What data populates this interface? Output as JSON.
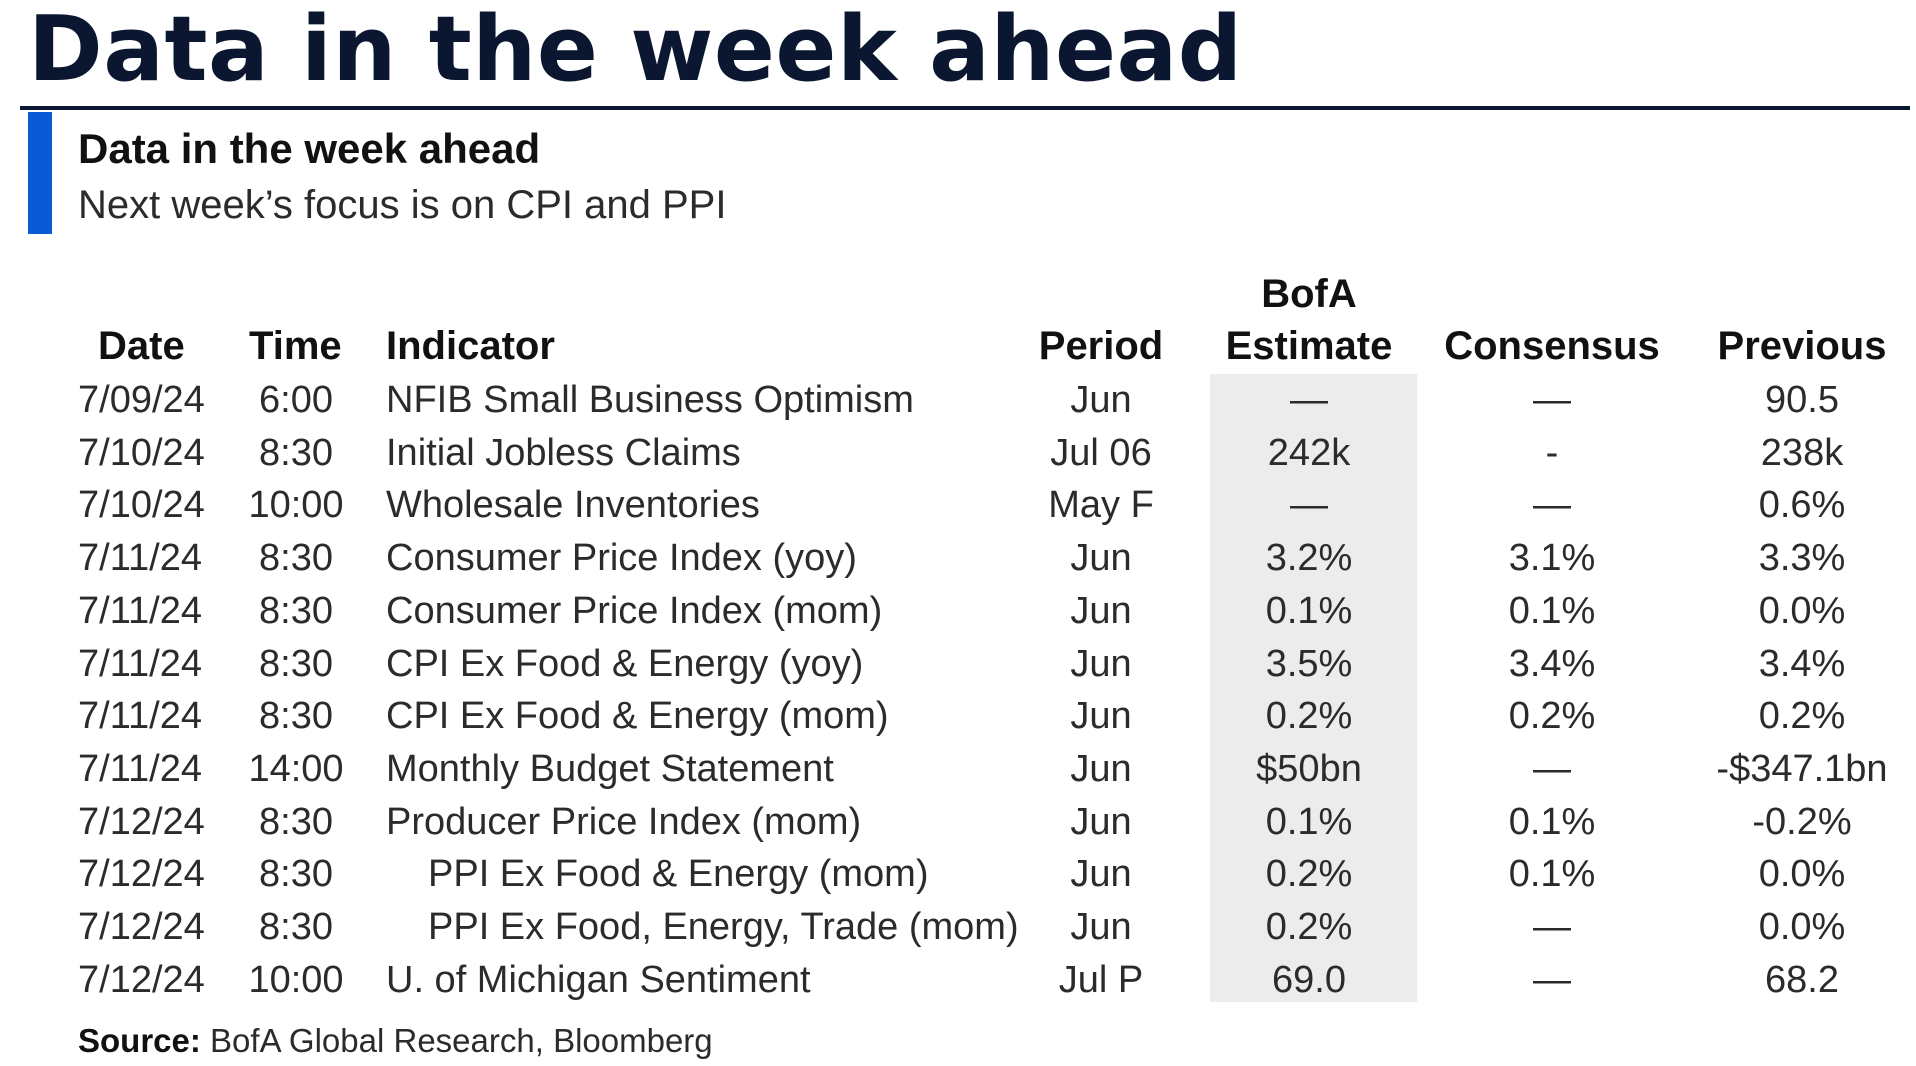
{
  "page_title": "Data in the week ahead",
  "exhibit": {
    "title": "Data in the week ahead",
    "subtitle": "Next week’s focus is on CPI and PPI"
  },
  "table": {
    "headers": {
      "date": "Date",
      "time": "Time",
      "indicator": "Indicator",
      "period": "Period",
      "estimate_line1": "BofA",
      "estimate_line2": "Estimate",
      "consensus": "Consensus",
      "previous": "Previous"
    },
    "rows": [
      {
        "date": "7/09/24",
        "time": "6:00",
        "indicator": "NFIB Small Business Optimism",
        "period": "Jun",
        "estimate": "—",
        "consensus": "—",
        "previous": "90.5"
      },
      {
        "date": "7/10/24",
        "time": "8:30",
        "indicator": "Initial Jobless Claims",
        "period": "Jul 06",
        "estimate": "242k",
        "consensus": "-",
        "previous": "238k"
      },
      {
        "date": "7/10/24",
        "time": "10:00",
        "indicator": "Wholesale Inventories",
        "period": "May F",
        "estimate": "—",
        "consensus": "—",
        "previous": "0.6%"
      },
      {
        "date": "7/11/24",
        "time": "8:30",
        "indicator": "Consumer Price Index (yoy)",
        "period": "Jun",
        "estimate": "3.2%",
        "consensus": "3.1%",
        "previous": "3.3%"
      },
      {
        "date": "7/11/24",
        "time": "8:30",
        "indicator": "Consumer Price Index (mom)",
        "period": "Jun",
        "estimate": "0.1%",
        "consensus": "0.1%",
        "previous": "0.0%"
      },
      {
        "date": "7/11/24",
        "time": "8:30",
        "indicator": "CPI Ex Food & Energy (yoy)",
        "period": "Jun",
        "estimate": "3.5%",
        "consensus": "3.4%",
        "previous": "3.4%"
      },
      {
        "date": "7/11/24",
        "time": "8:30",
        "indicator": "CPI Ex Food & Energy (mom)",
        "period": "Jun",
        "estimate": "0.2%",
        "consensus": "0.2%",
        "previous": "0.2%"
      },
      {
        "date": "7/11/24",
        "time": "14:00",
        "indicator": "Monthly Budget Statement",
        "period": "Jun",
        "estimate": "$50bn",
        "consensus": "—",
        "previous": "-$347.1bn"
      },
      {
        "date": "7/12/24",
        "time": "8:30",
        "indicator": "Producer Price Index (mom)",
        "period": "Jun",
        "estimate": "0.1%",
        "consensus": "0.1%",
        "previous": "-0.2%"
      },
      {
        "date": "7/12/24",
        "time": "8:30",
        "indicator": "PPI Ex Food & Energy (mom)",
        "period": "Jun",
        "estimate": "0.2%",
        "consensus": "0.1%",
        "previous": "0.0%",
        "indent": true
      },
      {
        "date": "7/12/24",
        "time": "8:30",
        "indicator": "PPI Ex Food, Energy, Trade (mom)",
        "period": "Jun",
        "estimate": "0.2%",
        "consensus": "—",
        "previous": "0.0%",
        "indent": true
      },
      {
        "date": "7/12/24",
        "time": "10:00",
        "indicator": "U. of Michigan Sentiment",
        "period": "Jul P",
        "estimate": "69.0",
        "consensus": "—",
        "previous": "68.2"
      }
    ]
  },
  "source": {
    "label": "Source:",
    "text": " BofA Global Research, Bloomberg"
  },
  "colors": {
    "title_text": "#0b1630",
    "accent_bar": "#0a5ad6",
    "estimate_shade": "#ececec"
  }
}
